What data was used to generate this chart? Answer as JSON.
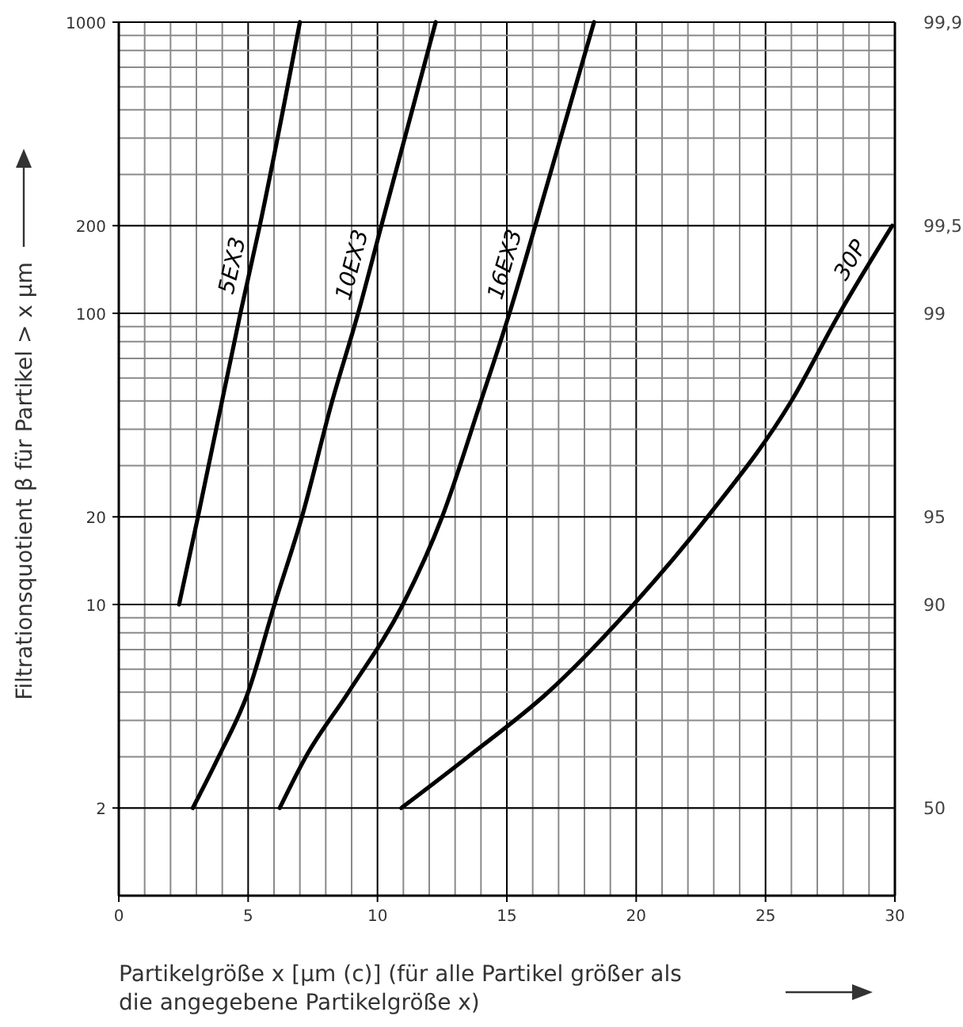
{
  "chart_data": {
    "type": "line",
    "xlabel": "Partikelgröße x [µm (c)] (für alle Partikel größer als die angegebene Partikelgröße x)",
    "ylabel": "Filtrationsquotient β für Partikel > x µm",
    "xlim": [
      0,
      30
    ],
    "xticks": [
      0,
      5,
      10,
      15,
      20,
      25,
      30
    ],
    "ylim": [
      1,
      1000
    ],
    "yticks": [
      2,
      10,
      20,
      100,
      200,
      1000
    ],
    "log": "y",
    "grid": true,
    "marker": "none",
    "line_style": "solid",
    "annotations": [
      "50",
      "90",
      "95",
      "99",
      "99,5",
      "99,9"
    ],
    "series": [
      {
        "name": "5EX3",
        "color": "#000000",
        "x": [
          2.33,
          3.06,
          4.7,
          5.45,
          7.0
        ],
        "values": [
          10,
          20,
          100,
          200,
          1000
        ]
      },
      {
        "name": "10EX3",
        "color": "#000000",
        "x": [
          2.86,
          3.86,
          5.0,
          6.02,
          7.08,
          8.25,
          9.25,
          10.15,
          12.25
        ],
        "values": [
          2,
          3,
          5,
          10,
          20,
          50,
          100,
          200,
          1000
        ]
      },
      {
        "name": "16EX3",
        "color": "#000000",
        "x": [
          6.22,
          7.23,
          8.88,
          10.98,
          12.5,
          14.0,
          15.1,
          16.1,
          18.37
        ],
        "values": [
          2,
          3,
          5,
          10,
          20,
          50,
          100,
          200,
          1000
        ]
      },
      {
        "name": "30P",
        "color": "#000000",
        "x": [
          10.92,
          13.5,
          16.6,
          19.9,
          22.76,
          26.0,
          27.86,
          29.9
        ],
        "values": [
          2,
          3,
          5,
          10,
          20,
          50,
          100,
          200
        ]
      }
    ]
  }
}
